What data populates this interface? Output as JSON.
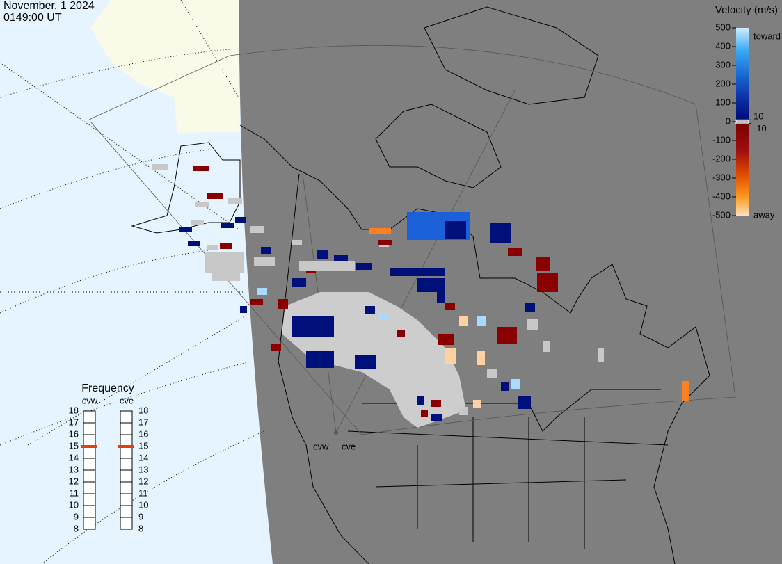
{
  "header": {
    "date": "November, 1 2024",
    "time": "0149:00 UT"
  },
  "colorbar": {
    "title": "Velocity (m/s)",
    "ticks": [
      500,
      400,
      300,
      200,
      100,
      0,
      -100,
      -200,
      -300,
      -400,
      -500
    ],
    "thresholds": [
      10,
      -10
    ],
    "top_label": "toward",
    "bottom_label": "away"
  },
  "frequency": {
    "title": "Frequency",
    "radars": [
      {
        "name": "cvw",
        "ticks": [
          18,
          17,
          16,
          15,
          14,
          13,
          12,
          11,
          10,
          9,
          8
        ],
        "value": 15
      },
      {
        "name": "cve",
        "ticks": [
          18,
          17,
          16,
          15,
          14,
          13,
          12,
          11,
          10,
          9,
          8
        ],
        "value": 15
      }
    ]
  }
}
